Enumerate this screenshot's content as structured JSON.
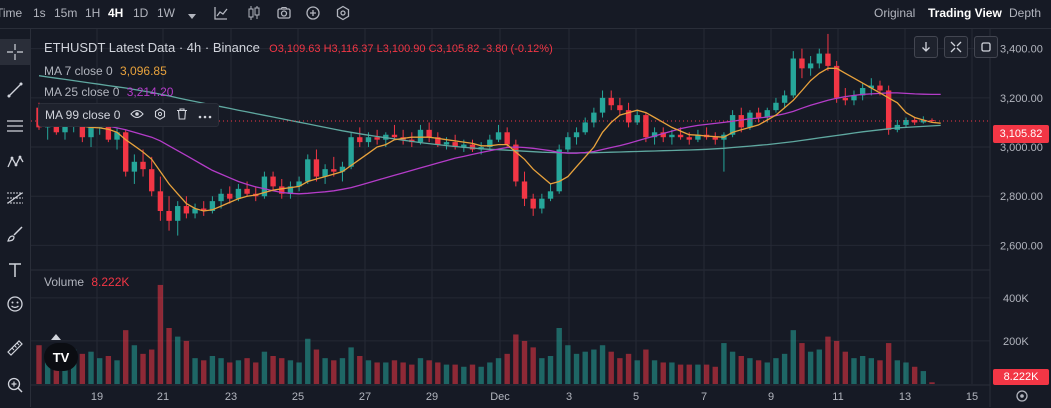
{
  "toolbar": {
    "time_label": "Time",
    "intervals": [
      "1s",
      "15m",
      "1H",
      "4H",
      "1D",
      "1W"
    ],
    "active_interval": "4H",
    "views": [
      "Original",
      "Trading View",
      "Depth"
    ],
    "active_view": "Trading View"
  },
  "legend": {
    "title": "ETHUSDT Latest Data · 4h · Binance",
    "open": "O3,109.63",
    "high": "H3,116.37",
    "low": "L3,100.90",
    "close": "C3,105.82",
    "change": "-3.80 (-0.12%)",
    "ma7_label": "MA 7 close 0",
    "ma7_value": "3,096.85",
    "ma25_label": "MA 25 close 0",
    "ma25_value": "3,214.20",
    "ma99_label": "MA 99 close 0",
    "volume_label": "Volume",
    "volume_value": "8.222K"
  },
  "price_tag": "3,105.82",
  "volume_tag": "8.222K",
  "logo_text": "TV",
  "colors": {
    "up": "#26a69a",
    "down": "#f23645",
    "ma7": "#e8a23c",
    "ma25": "#b43cc8",
    "ma99": "#5fa8a0",
    "bg": "#161a25",
    "grid": "#252935"
  },
  "icons": [
    "crosshair-icon",
    "trend-line-icon",
    "horizontal-lines-icon",
    "pattern-icon",
    "fib-icon",
    "brush-icon",
    "text-icon",
    "emoji-icon",
    "ruler-icon",
    "zoom-icon"
  ],
  "chart_data": {
    "type": "candlestick",
    "symbol": "ETHUSDT",
    "interval": "4h",
    "ylim": [
      2500,
      3480
    ],
    "y_ticks": [
      2600,
      2800,
      3000,
      3200,
      3400
    ],
    "y_tick_labels": [
      "2,600.00",
      "2,800.00",
      "3,000.00",
      "3,200.00",
      "3,400.00"
    ],
    "vol_ticks": [
      200,
      400
    ],
    "vol_tick_labels": [
      "200K",
      "400K"
    ],
    "vol_max": 520,
    "x_labels": [
      "19",
      "21",
      "23",
      "25",
      "27",
      "29",
      "Dec",
      "3",
      "5",
      "7",
      "9",
      "11",
      "13",
      "15"
    ],
    "candles": [
      [
        3160,
        3180,
        3070,
        3080,
        180
      ],
      [
        3080,
        3130,
        3030,
        3110,
        150
      ],
      [
        3110,
        3140,
        3050,
        3060,
        120
      ],
      [
        3060,
        3110,
        3030,
        3090,
        130
      ],
      [
        3090,
        3150,
        3060,
        3120,
        160
      ],
      [
        3120,
        3140,
        3020,
        3040,
        140
      ],
      [
        3040,
        3110,
        3000,
        3080,
        150
      ],
      [
        3080,
        3120,
        3050,
        3100,
        120
      ],
      [
        3100,
        3110,
        3020,
        3030,
        130
      ],
      [
        3030,
        3080,
        2990,
        3060,
        110
      ],
      [
        3060,
        3070,
        2880,
        2900,
        250
      ],
      [
        2900,
        2970,
        2850,
        2940,
        180
      ],
      [
        2940,
        2990,
        2880,
        2910,
        140
      ],
      [
        2910,
        2960,
        2800,
        2820,
        160
      ],
      [
        2820,
        2880,
        2700,
        2740,
        460
      ],
      [
        2740,
        2800,
        2660,
        2700,
        260
      ],
      [
        2700,
        2780,
        2640,
        2760,
        220
      ],
      [
        2760,
        2800,
        2710,
        2730,
        200
      ],
      [
        2730,
        2770,
        2710,
        2750,
        120
      ],
      [
        2750,
        2780,
        2720,
        2740,
        110
      ],
      [
        2740,
        2800,
        2730,
        2780,
        130
      ],
      [
        2780,
        2830,
        2750,
        2810,
        120
      ],
      [
        2810,
        2840,
        2770,
        2790,
        100
      ],
      [
        2790,
        2850,
        2780,
        2830,
        110
      ],
      [
        2830,
        2860,
        2800,
        2810,
        120
      ],
      [
        2810,
        2840,
        2780,
        2800,
        100
      ],
      [
        2800,
        2900,
        2790,
        2880,
        150
      ],
      [
        2880,
        2900,
        2820,
        2840,
        130
      ],
      [
        2840,
        2870,
        2790,
        2810,
        120
      ],
      [
        2810,
        2860,
        2790,
        2840,
        110
      ],
      [
        2840,
        2880,
        2820,
        2860,
        100
      ],
      [
        2860,
        2970,
        2850,
        2950,
        210
      ],
      [
        2950,
        2990,
        2860,
        2880,
        160
      ],
      [
        2880,
        2930,
        2850,
        2910,
        120
      ],
      [
        2910,
        2960,
        2880,
        2900,
        110
      ],
      [
        2900,
        2940,
        2860,
        2920,
        120
      ],
      [
        2920,
        3060,
        2910,
        3040,
        170
      ],
      [
        3040,
        3080,
        3000,
        3020,
        130
      ],
      [
        3020,
        3060,
        3000,
        3040,
        110
      ],
      [
        3040,
        3070,
        3010,
        3030,
        100
      ],
      [
        3030,
        3060,
        3000,
        3050,
        100
      ],
      [
        3050,
        3090,
        3030,
        3040,
        110
      ],
      [
        3040,
        3070,
        3010,
        3030,
        100
      ],
      [
        3030,
        3060,
        3000,
        3020,
        90
      ],
      [
        3020,
        3090,
        3010,
        3070,
        120
      ],
      [
        3070,
        3100,
        3020,
        3040,
        110
      ],
      [
        3040,
        3060,
        3000,
        3010,
        100
      ],
      [
        3010,
        3040,
        2990,
        3020,
        90
      ],
      [
        3020,
        3050,
        2990,
        3000,
        90
      ],
      [
        3000,
        3030,
        2980,
        3010,
        80
      ],
      [
        3010,
        3030,
        2980,
        2990,
        90
      ],
      [
        2990,
        3020,
        2970,
        3000,
        80
      ],
      [
        3000,
        3050,
        2990,
        3030,
        100
      ],
      [
        3030,
        3090,
        3020,
        3060,
        120
      ],
      [
        3060,
        3080,
        3000,
        3010,
        140
      ],
      [
        3010,
        3030,
        2840,
        2860,
        230
      ],
      [
        2860,
        2900,
        2760,
        2790,
        200
      ],
      [
        2790,
        2810,
        2720,
        2750,
        170
      ],
      [
        2750,
        2810,
        2730,
        2790,
        120
      ],
      [
        2790,
        2850,
        2780,
        2820,
        130
      ],
      [
        2820,
        3010,
        2810,
        2990,
        260
      ],
      [
        2990,
        3060,
        2980,
        3040,
        180
      ],
      [
        3040,
        3080,
        3010,
        3060,
        140
      ],
      [
        3060,
        3120,
        3050,
        3100,
        150
      ],
      [
        3100,
        3160,
        3080,
        3140,
        160
      ],
      [
        3140,
        3230,
        3120,
        3200,
        180
      ],
      [
        3200,
        3230,
        3150,
        3170,
        150
      ],
      [
        3170,
        3200,
        3130,
        3150,
        120
      ],
      [
        3150,
        3180,
        3080,
        3100,
        140
      ],
      [
        3100,
        3150,
        3090,
        3130,
        110
      ],
      [
        3130,
        3140,
        3020,
        3040,
        160
      ],
      [
        3040,
        3080,
        3010,
        3060,
        110
      ],
      [
        3060,
        3080,
        3020,
        3040,
        100
      ],
      [
        3040,
        3070,
        3010,
        3050,
        100
      ],
      [
        3050,
        3080,
        3030,
        3040,
        90
      ],
      [
        3040,
        3060,
        3010,
        3030,
        90
      ],
      [
        3030,
        3070,
        3020,
        3050,
        90
      ],
      [
        3050,
        3080,
        3030,
        3040,
        90
      ],
      [
        3040,
        3060,
        3010,
        3030,
        80
      ],
      [
        3030,
        3060,
        2900,
        3050,
        190
      ],
      [
        3050,
        3150,
        3040,
        3130,
        150
      ],
      [
        3130,
        3160,
        3060,
        3080,
        130
      ],
      [
        3080,
        3150,
        3070,
        3140,
        120
      ],
      [
        3140,
        3160,
        3100,
        3120,
        110
      ],
      [
        3120,
        3160,
        3100,
        3150,
        100
      ],
      [
        3150,
        3200,
        3140,
        3180,
        120
      ],
      [
        3180,
        3230,
        3160,
        3210,
        140
      ],
      [
        3210,
        3390,
        3200,
        3360,
        250
      ],
      [
        3360,
        3400,
        3280,
        3320,
        190
      ],
      [
        3320,
        3370,
        3290,
        3340,
        150
      ],
      [
        3340,
        3400,
        3320,
        3380,
        160
      ],
      [
        3380,
        3460,
        3310,
        3330,
        220
      ],
      [
        3330,
        3350,
        3180,
        3200,
        200
      ],
      [
        3200,
        3240,
        3170,
        3190,
        150
      ],
      [
        3190,
        3230,
        3170,
        3210,
        120
      ],
      [
        3210,
        3260,
        3190,
        3240,
        130
      ],
      [
        3240,
        3280,
        3210,
        3250,
        120
      ],
      [
        3250,
        3270,
        3210,
        3230,
        110
      ],
      [
        3230,
        3250,
        3050,
        3070,
        190
      ],
      [
        3070,
        3110,
        3060,
        3090,
        110
      ],
      [
        3090,
        3120,
        3080,
        3110,
        100
      ],
      [
        3110,
        3120,
        3090,
        3100,
        80
      ],
      [
        3100,
        3125,
        3095,
        3110,
        60
      ],
      [
        3109.63,
        3116.37,
        3100.9,
        3105.82,
        8
      ]
    ],
    "ma7": [
      3130,
      3120,
      3110,
      3100,
      3095,
      3085,
      3080,
      3078,
      3072,
      3060,
      3030,
      3005,
      2980,
      2950,
      2900,
      2850,
      2810,
      2770,
      2750,
      2740,
      2745,
      2760,
      2775,
      2790,
      2800,
      2805,
      2815,
      2825,
      2830,
      2835,
      2840,
      2860,
      2870,
      2880,
      2890,
      2900,
      2925,
      2950,
      2975,
      3000,
      3010,
      3030,
      3035,
      3040,
      3040,
      3040,
      3035,
      3030,
      3025,
      3020,
      3015,
      3005,
      3005,
      3010,
      3010,
      2980,
      2950,
      2910,
      2880,
      2850,
      2860,
      2880,
      2920,
      2960,
      3000,
      3060,
      3100,
      3130,
      3140,
      3150,
      3140,
      3120,
      3100,
      3080,
      3065,
      3050,
      3048,
      3045,
      3042,
      3040,
      3060,
      3070,
      3080,
      3090,
      3110,
      3130,
      3160,
      3190,
      3230,
      3270,
      3300,
      3320,
      3320,
      3300,
      3280,
      3260,
      3240,
      3220,
      3200,
      3180,
      3140,
      3120,
      3110,
      3100,
      3096.85
    ],
    "ma25": [
      3120,
      3118,
      3115,
      3110,
      3105,
      3100,
      3095,
      3090,
      3085,
      3078,
      3070,
      3060,
      3050,
      3040,
      3025,
      3005,
      2985,
      2965,
      2945,
      2925,
      2905,
      2890,
      2875,
      2860,
      2848,
      2838,
      2830,
      2822,
      2815,
      2812,
      2810,
      2812,
      2815,
      2818,
      2822,
      2828,
      2835,
      2845,
      2855,
      2865,
      2875,
      2885,
      2895,
      2905,
      2915,
      2925,
      2935,
      2945,
      2955,
      2962,
      2970,
      2978,
      2985,
      2992,
      2998,
      3000,
      2998,
      2995,
      2990,
      2985,
      2978,
      2975,
      2975,
      2978,
      2982,
      2990,
      2998,
      3006,
      3015,
      3025,
      3035,
      3045,
      3055,
      3065,
      3075,
      3082,
      3088,
      3092,
      3096,
      3100,
      3105,
      3110,
      3115,
      3118,
      3122,
      3128,
      3135,
      3145,
      3158,
      3170,
      3180,
      3190,
      3198,
      3205,
      3210,
      3214,
      3216,
      3218,
      3220,
      3220,
      3218,
      3216,
      3215,
      3214,
      3214.2
    ],
    "ma99": [
      3290,
      3285,
      3280,
      3275,
      3270,
      3265,
      3260,
      3255,
      3250,
      3245,
      3240,
      3234,
      3228,
      3222,
      3215,
      3208,
      3200,
      3192,
      3185,
      3178,
      3171,
      3164,
      3157,
      3150,
      3143,
      3136,
      3129,
      3122,
      3115,
      3108,
      3101,
      3094,
      3087,
      3080,
      3073,
      3066,
      3060,
      3054,
      3048,
      3043,
      3038,
      3033,
      3028,
      3023,
      3018,
      3014,
      3010,
      3006,
      3002,
      2999,
      2996,
      2993,
      2991,
      2989,
      2987,
      2985,
      2983,
      2981,
      2979,
      2978,
      2977,
      2976,
      2976,
      2976,
      2977,
      2978,
      2979,
      2980,
      2981,
      2982,
      2983,
      2984,
      2985,
      2986,
      2987,
      2988,
      2989,
      2991,
      2993,
      2995,
      2998,
      3001,
      3004,
      3007,
      3010,
      3014,
      3018,
      3022,
      3027,
      3032,
      3037,
      3042,
      3047,
      3052,
      3057,
      3062,
      3066,
      3070,
      3074,
      3078,
      3080,
      3082,
      3084,
      3086,
      3088
    ]
  }
}
